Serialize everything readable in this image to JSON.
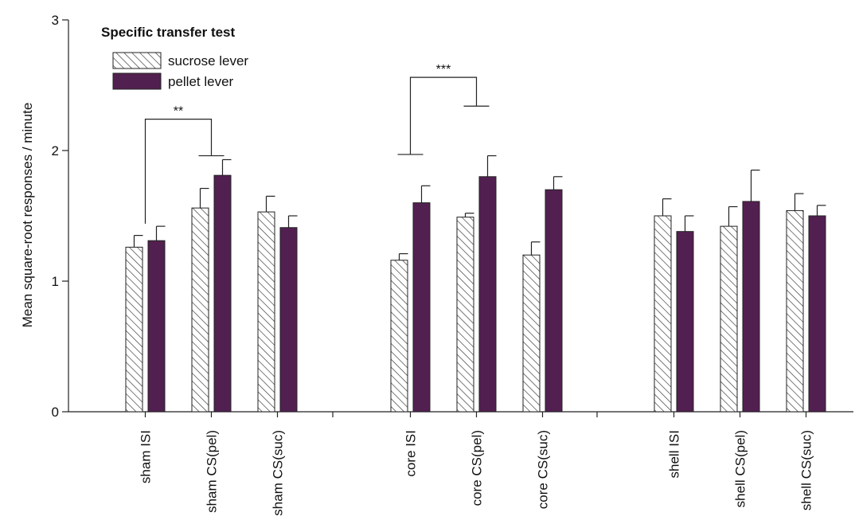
{
  "colors": {
    "pellet": "#522050",
    "hatch": "#333333",
    "axis": "#222222"
  },
  "chart_data": {
    "type": "bar",
    "title": "",
    "ylabel": "Mean square-root responses / minute",
    "ylim": [
      0,
      3
    ],
    "yticks": [
      0,
      1,
      2,
      3
    ],
    "categories": [
      "sham ISI",
      "sham CS(pel)",
      "sham CS(suc)",
      "core ISI",
      "core CS(pel)",
      "core CS(suc)",
      "shell ISI",
      "shell CS(pel)",
      "shell CS(suc)"
    ],
    "groups": [
      "sham",
      "core",
      "shell"
    ],
    "series": [
      {
        "name": "sucrose lever",
        "pattern": "hatched",
        "values": [
          1.26,
          1.56,
          1.53,
          1.16,
          1.49,
          1.2,
          1.5,
          1.42,
          1.54
        ],
        "errors": [
          0.09,
          0.15,
          0.12,
          0.05,
          0.03,
          0.1,
          0.13,
          0.15,
          0.13
        ]
      },
      {
        "name": "pellet lever",
        "pattern": "solid",
        "values": [
          1.31,
          1.81,
          1.41,
          1.6,
          1.8,
          1.7,
          1.38,
          1.61,
          1.5
        ],
        "errors": [
          0.11,
          0.12,
          0.09,
          0.13,
          0.16,
          0.1,
          0.12,
          0.24,
          0.08
        ]
      }
    ],
    "legend": {
      "title": "Specific transfer test",
      "position": "top-left"
    },
    "annotations": [
      {
        "label": "**",
        "from_category": 0,
        "to_category": 1,
        "y": 2.24,
        "left_end": 1.44,
        "right_end": 1.96
      },
      {
        "label": "***",
        "from_category": 3,
        "to_category": 4,
        "y": 2.56,
        "left_end": 1.97,
        "right_end": 2.34
      }
    ],
    "grid": false
  }
}
